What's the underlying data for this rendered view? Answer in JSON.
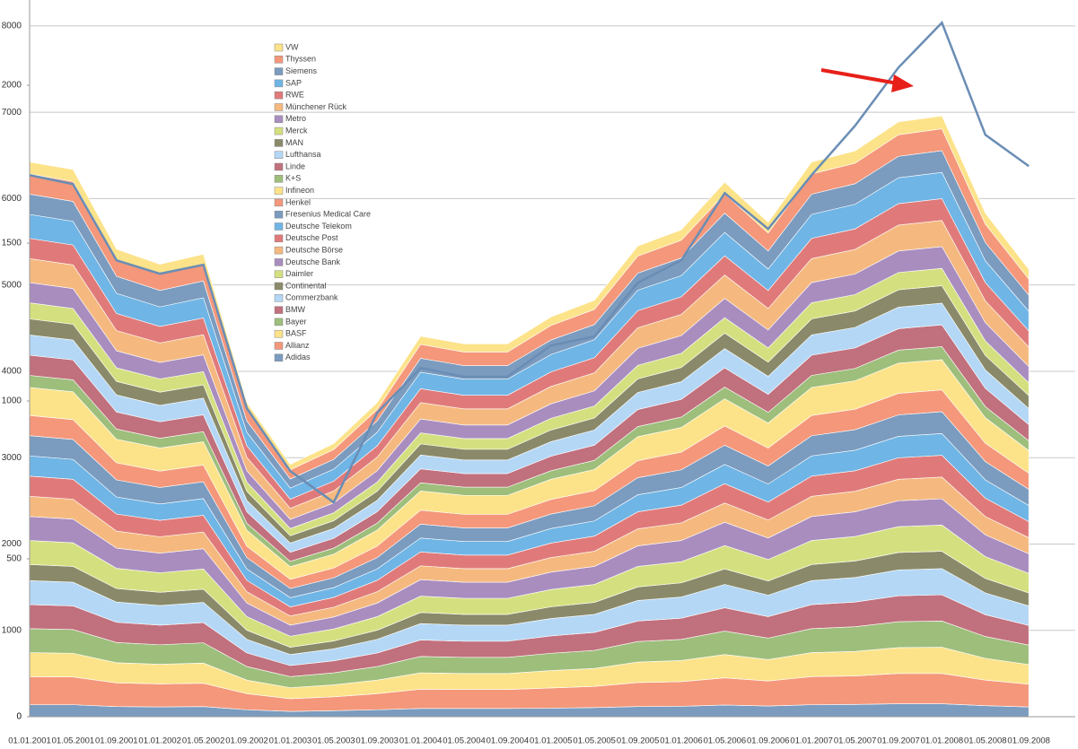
{
  "chart_data": {
    "type": "stacked-area",
    "categories": [
      "01.01.2001",
      "01.05.2001",
      "01.09.2001",
      "01.01.2002",
      "01.05.2002",
      "01.09.2002",
      "01.01.2003",
      "01.05.2003",
      "01.09.2003",
      "01.01.2004",
      "01.05.2004",
      "01.09.2004",
      "01.01.2005",
      "01.05.2005",
      "01.09.2005",
      "01.01.2006",
      "01.05.2006",
      "01.09.2006",
      "01.01.2007",
      "01.05.2007",
      "01.09.2007",
      "01.01.2008",
      "01.05.2008",
      "01.09.2008"
    ],
    "ylim": [
      0,
      2270
    ],
    "yticks": [
      0,
      500,
      1000,
      1500,
      2000
    ],
    "y2lim": [
      0,
      8300
    ],
    "y2ticks": [
      0,
      1000,
      2000,
      3000,
      4000,
      5000,
      6000,
      7000,
      8000
    ],
    "grid": "y2",
    "legend": "upper-left",
    "series": [
      {
        "name": "Adidas",
        "color": "#7b9bbf",
        "values": [
          38,
          38,
          32,
          31,
          32,
          22,
          17,
          19,
          22,
          26,
          26,
          26,
          27,
          29,
          32,
          33,
          37,
          34,
          38,
          39,
          41,
          41,
          35,
          31
        ]
      },
      {
        "name": "Allianz",
        "color": "#f4977a",
        "values": [
          89,
          88,
          75,
          73,
          74,
          51,
          40,
          44,
          51,
          61,
          60,
          60,
          64,
          67,
          76,
          78,
          86,
          79,
          89,
          90,
          96,
          96,
          81,
          72
        ]
      },
      {
        "name": "BASF",
        "color": "#fce38a",
        "values": [
          76,
          75,
          64,
          62,
          64,
          43,
          35,
          38,
          43,
          52,
          51,
          51,
          55,
          57,
          65,
          67,
          74,
          68,
          76,
          78,
          82,
          83,
          69,
          62
        ]
      },
      {
        "name": "Bayer",
        "color": "#9ebe7c",
        "values": [
          76,
          75,
          64,
          62,
          64,
          43,
          35,
          38,
          43,
          52,
          51,
          51,
          55,
          57,
          65,
          67,
          74,
          68,
          76,
          78,
          82,
          83,
          69,
          62
        ]
      },
      {
        "name": "BMW",
        "color": "#c1707d",
        "values": [
          76,
          75,
          64,
          62,
          64,
          43,
          35,
          38,
          43,
          52,
          51,
          51,
          55,
          57,
          65,
          67,
          74,
          68,
          76,
          78,
          82,
          83,
          69,
          62
        ]
      },
      {
        "name": "Commerzbank",
        "color": "#b4d7f5",
        "values": [
          76,
          75,
          64,
          62,
          64,
          43,
          35,
          38,
          43,
          52,
          51,
          51,
          55,
          57,
          65,
          67,
          74,
          68,
          76,
          78,
          82,
          83,
          69,
          62
        ]
      },
      {
        "name": "Continental",
        "color": "#8a8a6a",
        "values": [
          51,
          50,
          43,
          42,
          42,
          29,
          23,
          25,
          29,
          35,
          34,
          34,
          37,
          38,
          43,
          45,
          49,
          45,
          51,
          52,
          55,
          55,
          46,
          41
        ]
      },
      {
        "name": "Daimler",
        "color": "#d4e07f",
        "values": [
          76,
          75,
          64,
          62,
          64,
          43,
          35,
          38,
          43,
          52,
          51,
          51,
          55,
          57,
          65,
          67,
          74,
          68,
          76,
          78,
          82,
          83,
          69,
          62
        ]
      },
      {
        "name": "Deutsche Bank",
        "color": "#a98dbf",
        "values": [
          76,
          75,
          64,
          62,
          64,
          43,
          35,
          38,
          43,
          52,
          51,
          51,
          55,
          57,
          65,
          67,
          74,
          68,
          76,
          78,
          82,
          83,
          69,
          62
        ]
      },
      {
        "name": "Deutsche Börse",
        "color": "#f5b97f",
        "values": [
          64,
          63,
          54,
          52,
          53,
          36,
          29,
          31,
          36,
          44,
          43,
          43,
          46,
          48,
          54,
          56,
          61,
          57,
          64,
          65,
          68,
          69,
          58,
          51
        ]
      },
      {
        "name": "Deutsche Post",
        "color": "#e07a7a",
        "values": [
          64,
          63,
          54,
          52,
          53,
          36,
          29,
          31,
          36,
          44,
          43,
          43,
          46,
          48,
          54,
          56,
          61,
          57,
          64,
          65,
          68,
          69,
          58,
          51
        ]
      },
      {
        "name": "Deutsche Telekom",
        "color": "#6fb5e5",
        "values": [
          64,
          63,
          54,
          52,
          53,
          36,
          29,
          31,
          36,
          44,
          43,
          43,
          46,
          48,
          54,
          56,
          61,
          57,
          64,
          65,
          68,
          69,
          58,
          51
        ]
      },
      {
        "name": "Fresenius Medical Care",
        "color": "#7b9bbf",
        "values": [
          64,
          63,
          54,
          52,
          53,
          36,
          29,
          31,
          36,
          44,
          43,
          43,
          46,
          48,
          54,
          56,
          61,
          57,
          64,
          65,
          68,
          69,
          58,
          51
        ]
      },
      {
        "name": "Henkel",
        "color": "#f4977a",
        "values": [
          64,
          63,
          54,
          52,
          53,
          36,
          29,
          31,
          36,
          44,
          43,
          43,
          46,
          48,
          54,
          56,
          61,
          57,
          64,
          65,
          68,
          69,
          58,
          51
        ]
      },
      {
        "name": "Infineon",
        "color": "#fce38a",
        "values": [
          89,
          88,
          75,
          73,
          74,
          51,
          40,
          44,
          51,
          61,
          60,
          60,
          64,
          67,
          76,
          78,
          86,
          79,
          89,
          90,
          96,
          96,
          81,
          72
        ]
      },
      {
        "name": "K+S",
        "color": "#9ebe7c",
        "values": [
          38,
          38,
          32,
          31,
          32,
          22,
          17,
          19,
          22,
          26,
          26,
          26,
          27,
          29,
          32,
          33,
          37,
          34,
          38,
          39,
          41,
          41,
          35,
          31
        ]
      },
      {
        "name": "Linde",
        "color": "#c1707d",
        "values": [
          64,
          63,
          54,
          52,
          53,
          36,
          29,
          31,
          36,
          44,
          43,
          43,
          46,
          48,
          54,
          56,
          61,
          57,
          64,
          65,
          68,
          69,
          58,
          51
        ]
      },
      {
        "name": "Lufthansa",
        "color": "#b4d7f5",
        "values": [
          64,
          63,
          54,
          52,
          53,
          36,
          29,
          31,
          36,
          44,
          43,
          43,
          46,
          48,
          54,
          56,
          61,
          57,
          64,
          65,
          68,
          69,
          58,
          51
        ]
      },
      {
        "name": "MAN",
        "color": "#8a8a6a",
        "values": [
          51,
          50,
          43,
          42,
          42,
          29,
          23,
          25,
          29,
          35,
          34,
          34,
          37,
          38,
          43,
          45,
          49,
          45,
          51,
          52,
          55,
          55,
          46,
          41
        ]
      },
      {
        "name": "Merck",
        "color": "#d4e07f",
        "values": [
          51,
          50,
          43,
          42,
          42,
          29,
          23,
          25,
          29,
          35,
          34,
          34,
          37,
          38,
          43,
          45,
          49,
          45,
          51,
          52,
          55,
          55,
          46,
          41
        ]
      },
      {
        "name": "Metro",
        "color": "#a98dbf",
        "values": [
          64,
          63,
          54,
          52,
          53,
          36,
          29,
          31,
          36,
          44,
          43,
          43,
          46,
          48,
          54,
          56,
          61,
          57,
          64,
          65,
          68,
          69,
          58,
          51
        ]
      },
      {
        "name": "Münchener Rück",
        "color": "#f5b97f",
        "values": [
          76,
          75,
          64,
          62,
          64,
          43,
          35,
          38,
          43,
          52,
          51,
          51,
          55,
          57,
          65,
          67,
          74,
          68,
          76,
          78,
          82,
          83,
          69,
          62
        ]
      },
      {
        "name": "RWE",
        "color": "#e07a7a",
        "values": [
          64,
          63,
          54,
          52,
          53,
          36,
          29,
          31,
          36,
          44,
          43,
          43,
          46,
          48,
          54,
          56,
          61,
          57,
          64,
          65,
          68,
          69,
          58,
          51
        ]
      },
      {
        "name": "SAP",
        "color": "#6fb5e5",
        "values": [
          76,
          75,
          64,
          62,
          64,
          43,
          35,
          38,
          43,
          52,
          51,
          51,
          55,
          57,
          65,
          67,
          74,
          68,
          76,
          78,
          82,
          83,
          69,
          62
        ]
      },
      {
        "name": "Siemens",
        "color": "#7b9bbf",
        "values": [
          64,
          63,
          54,
          52,
          53,
          36,
          29,
          31,
          36,
          44,
          43,
          43,
          46,
          48,
          54,
          56,
          61,
          57,
          64,
          65,
          68,
          69,
          58,
          51
        ]
      },
      {
        "name": "Thyssen",
        "color": "#f4977a",
        "values": [
          64,
          63,
          54,
          52,
          53,
          36,
          29,
          31,
          36,
          44,
          43,
          43,
          46,
          48,
          54,
          56,
          61,
          57,
          64,
          65,
          68,
          69,
          58,
          51
        ]
      },
      {
        "name": "VW",
        "color": "#fce38a",
        "values": [
          38,
          38,
          32,
          31,
          32,
          22,
          17,
          19,
          22,
          26,
          26,
          26,
          27,
          29,
          32,
          33,
          37,
          34,
          38,
          39,
          41,
          41,
          35,
          31
        ]
      },
      {
        "color": "#6a8db5",
        "axis": "y2",
        "values": [
          6272,
          6168,
          5286,
          5130,
          5234,
          3572,
          2845,
          2482,
          3520,
          4039,
          3936,
          3936,
          4299,
          4403,
          5026,
          5286,
          6064,
          5649,
          6272,
          6843,
          7518,
          8037,
          6739,
          6376
        ]
      }
    ]
  }
}
